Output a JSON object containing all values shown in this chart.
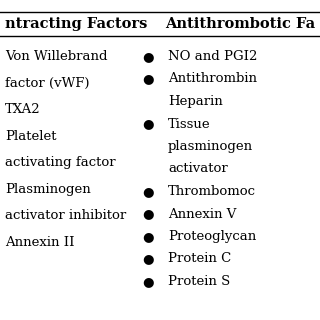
{
  "title_left": "ntracting Factors",
  "title_right": "Antithrombotic Fa",
  "left_items": [
    "Von Willebrand",
    "factor (vWF)",
    "TXA2",
    "Platelet",
    "activating factor",
    "Plasminogen",
    "activator inhibitor",
    "Annexin II"
  ],
  "right_bullets": [
    {
      "bullet": true,
      "text": "NO and PGI2"
    },
    {
      "bullet": true,
      "text": "Antithrombin"
    },
    {
      "bullet": false,
      "text": "Heparin"
    },
    {
      "bullet": true,
      "text": "Tissue"
    },
    {
      "bullet": false,
      "text": "plasminogen"
    },
    {
      "bullet": false,
      "text": "activator"
    },
    {
      "bullet": true,
      "text": "Thrombomoc"
    },
    {
      "bullet": true,
      "text": "Annexin V"
    },
    {
      "bullet": true,
      "text": "Proteoglycan"
    },
    {
      "bullet": true,
      "text": "Protein C"
    },
    {
      "bullet": true,
      "text": "Protein S"
    }
  ],
  "bg_color": "#ffffff",
  "text_color": "#000000",
  "header_fontsize": 10.5,
  "body_fontsize": 9.5,
  "bullet_char": "●"
}
